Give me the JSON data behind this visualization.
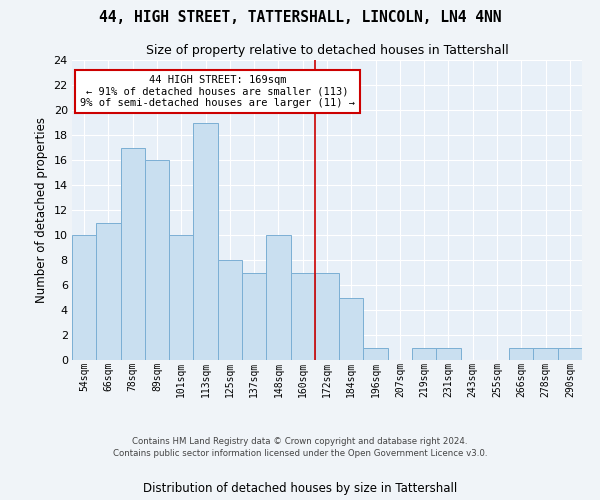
{
  "title1": "44, HIGH STREET, TATTERSHALL, LINCOLN, LN4 4NN",
  "title2": "Size of property relative to detached houses in Tattershall",
  "xlabel": "Distribution of detached houses by size in Tattershall",
  "ylabel": "Number of detached properties",
  "bar_color": "#c9dff0",
  "bar_edge_color": "#7bafd4",
  "background_color": "#e8f0f8",
  "grid_color": "#ffffff",
  "fig_background": "#f0f4f8",
  "categories": [
    "54sqm",
    "66sqm",
    "78sqm",
    "89sqm",
    "101sqm",
    "113sqm",
    "125sqm",
    "137sqm",
    "148sqm",
    "160sqm",
    "172sqm",
    "184sqm",
    "196sqm",
    "207sqm",
    "219sqm",
    "231sqm",
    "243sqm",
    "255sqm",
    "266sqm",
    "278sqm",
    "290sqm"
  ],
  "values": [
    10,
    11,
    17,
    16,
    10,
    19,
    8,
    7,
    10,
    7,
    7,
    5,
    1,
    0,
    1,
    1,
    0,
    0,
    1,
    1,
    1
  ],
  "ylim": [
    0,
    24
  ],
  "yticks": [
    0,
    2,
    4,
    6,
    8,
    10,
    12,
    14,
    16,
    18,
    20,
    22,
    24
  ],
  "vline_x": 9.5,
  "vline_color": "#cc0000",
  "annotation_text": "44 HIGH STREET: 169sqm\n← 91% of detached houses are smaller (113)\n9% of semi-detached houses are larger (11) →",
  "annotation_box_facecolor": "#ffffff",
  "annotation_box_edgecolor": "#cc0000",
  "footer1": "Contains HM Land Registry data © Crown copyright and database right 2024.",
  "footer2": "Contains public sector information licensed under the Open Government Licence v3.0."
}
